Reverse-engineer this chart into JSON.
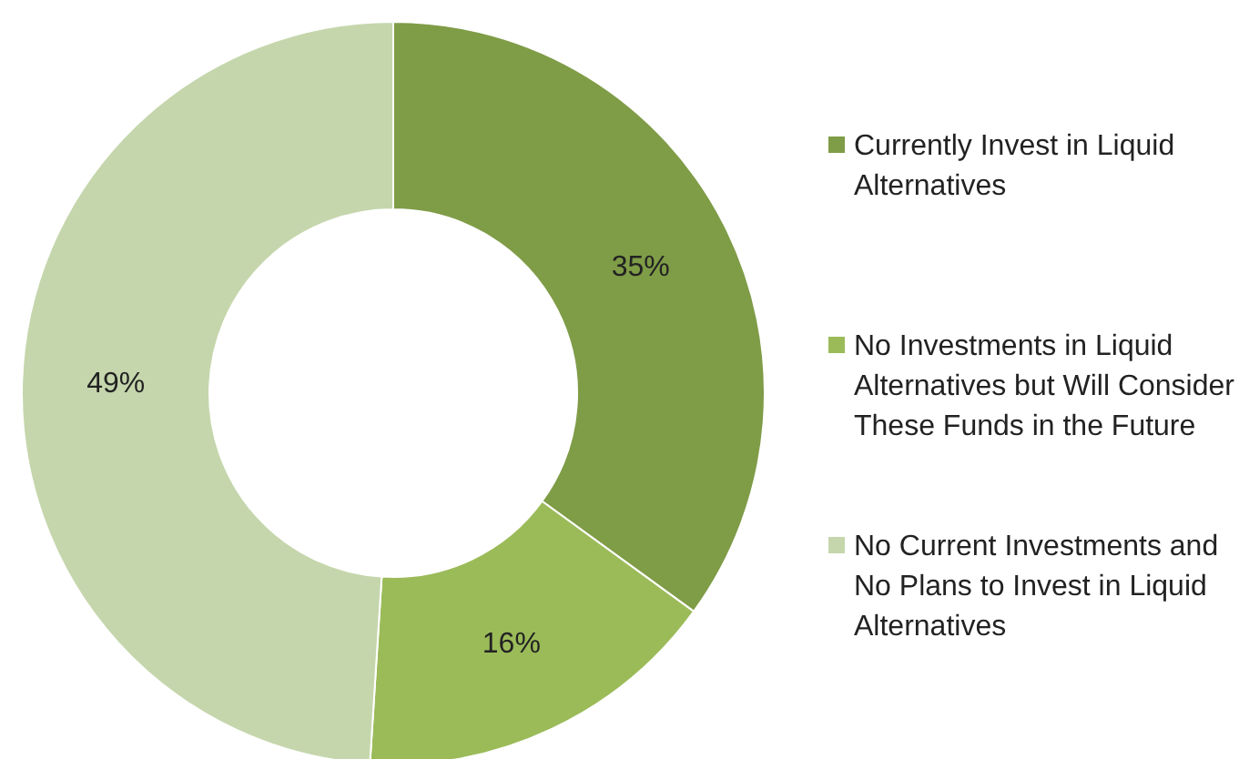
{
  "chart_data": {
    "type": "donut",
    "categories": [
      "Currently Invest in Liquid Alternatives",
      "No Investments in Liquid Alternatives but Will Consider These Funds in the Future",
      "No Current Investments and No Plans to Invest in Liquid Alternatives"
    ],
    "values": [
      35,
      16,
      49
    ],
    "colors": [
      "#7f9c47",
      "#9bbb59",
      "#c5d6ac"
    ],
    "value_labels": [
      "35%",
      "16%",
      "49%"
    ],
    "legend": "right"
  }
}
